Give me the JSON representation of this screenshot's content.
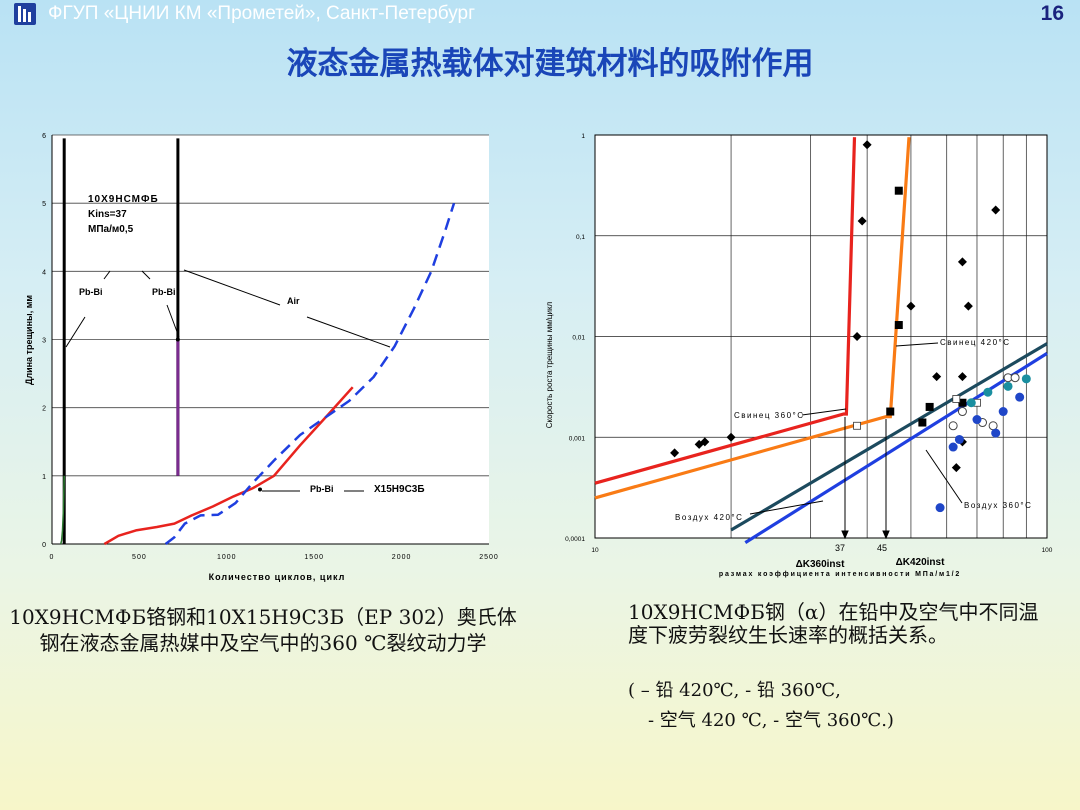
{
  "header": {
    "org": "ФГУП «ЦНИИ КМ «Прометей», Санкт-Петербург",
    "page": "16"
  },
  "title": "液态金属热载体对建筑材料的吸附作用",
  "captions": {
    "left": "10Х9НСМФБ铬钢和10Х15Н9С3Б（ЕР 302）奥氏体钢在液态金属热媒中及空气中的360 ℃裂纹动力学",
    "right": "10Х9НСМФБ钢（α）在铅中及空气中不同温度下疲劳裂纹生长速率的概括关系。",
    "legend_line1": "(    – 铅 420℃,   - 铅 360℃,",
    "legend_line2": "- 空气 420 ℃,    - 空气 360℃.)"
  },
  "colors": {
    "red": "#e8231e",
    "blue": "#1f3fe0",
    "orange": "#f97b15",
    "darkteal": "#1c4a5e",
    "purple": "#7a2b8f",
    "title_blue": "#1a46b8"
  },
  "chart_data": [
    {
      "type": "line",
      "xlabel": "Количество циклов, цикл",
      "ylabel": "Длина трещины, мм",
      "xlim": [
        0,
        2500
      ],
      "ylim": [
        0,
        6
      ],
      "xticks": [
        "0",
        "500",
        "1000",
        "1500",
        "2000",
        "2500"
      ],
      "yticks": [
        "0",
        "1",
        "2",
        "3",
        "4",
        "5",
        "6"
      ],
      "grid": "horizontal",
      "annotations": {
        "material_line1": "10Х9НСМФБ",
        "material_line2": "Kins=37",
        "material_line3": "МПа/м0,5",
        "pb1": "Pb-Bi",
        "pb2": "Pb-Bi",
        "air": "Air",
        "legend_pb": "Pb-Bi",
        "legend_steel": "Х15Н9С3Б"
      },
      "series": [
        {
          "role": "vertical-black-1",
          "x": [
            70,
            70
          ],
          "y": [
            0,
            5.95
          ]
        },
        {
          "role": "vertical-black-2",
          "x": [
            720,
            720
          ],
          "y": [
            1.0,
            5.95
          ]
        },
        {
          "role": "purple-segment",
          "x": [
            720,
            720
          ],
          "y": [
            1.0,
            3.0
          ]
        },
        {
          "role": "green-tail",
          "x": [
            50,
            55,
            60,
            65,
            70
          ],
          "y": [
            0,
            0.05,
            0.2,
            0.5,
            1.0
          ]
        },
        {
          "role": "red-X15N9S3B-PbBi",
          "x": [
            300,
            380,
            480,
            600,
            700,
            800,
            920,
            1040,
            1150,
            1270,
            1420,
            1580,
            1720
          ],
          "y": [
            0,
            0.12,
            0.2,
            0.25,
            0.3,
            0.42,
            0.55,
            0.7,
            0.82,
            1.0,
            1.45,
            1.9,
            2.3
          ]
        },
        {
          "role": "blue-dashed-air",
          "x": [
            650,
            700,
            760,
            850,
            950,
            1050,
            1150,
            1280,
            1420,
            1560,
            1700,
            1840,
            1960,
            2070,
            2170,
            2250,
            2300
          ],
          "y": [
            0,
            0.1,
            0.3,
            0.42,
            0.43,
            0.6,
            0.9,
            1.25,
            1.6,
            1.85,
            2.1,
            2.45,
            2.9,
            3.45,
            4.0,
            4.6,
            5.0
          ]
        }
      ]
    },
    {
      "type": "scatter",
      "xlabel": "размах коэффициента интенсивности МПа/м1/2",
      "ylabel": "Скорость роста трещины мм/цикл",
      "xscale": "log",
      "yscale": "log",
      "xlim": [
        10,
        100
      ],
      "ylim": [
        0.0001,
        1
      ],
      "xticks": [
        "10",
        "100"
      ],
      "yticks": [
        "0,0001",
        "0,001",
        "0,01",
        "0,1",
        "1"
      ],
      "grid": "both",
      "markers_x": [
        "37",
        "45"
      ],
      "k360": "ΔK360inst",
      "k420": "ΔK420inst",
      "annotations": {
        "lead420": "Свинец 420°C",
        "lead360": "Свинец 360°C",
        "air420": "Воздух 420°C",
        "air360": "Воздух 360°C"
      },
      "lines": [
        {
          "role": "red-lead-360",
          "x": [
            10,
            35.5,
            36,
            37.5
          ],
          "y": [
            0.00035,
            0.0017,
            0.0017,
            0.95
          ]
        },
        {
          "role": "orange-lead-420",
          "x": [
            10,
            44,
            45,
            49.5
          ],
          "y": [
            0.00025,
            0.0016,
            0.0016,
            0.95
          ]
        },
        {
          "role": "darkteal-air-420",
          "x": [
            20,
            100
          ],
          "y": [
            0.00012,
            0.0085
          ]
        },
        {
          "role": "blue-air-360",
          "x": [
            21.5,
            100
          ],
          "y": [
            9e-05,
            0.0068
          ]
        }
      ],
      "points": {
        "diamonds": [
          [
            15,
            0.0007
          ],
          [
            17,
            0.00085
          ],
          [
            17.5,
            0.0009
          ],
          [
            20,
            0.001
          ],
          [
            38,
            0.01
          ],
          [
            40,
            0.8
          ],
          [
            39,
            0.14
          ],
          [
            50,
            0.02
          ],
          [
            57,
            0.004
          ],
          [
            65,
            0.004
          ],
          [
            65,
            0.055
          ],
          [
            67,
            0.02
          ],
          [
            77,
            0.18
          ],
          [
            63,
            0.0005
          ],
          [
            65,
            0.0009
          ]
        ],
        "squares": [
          [
            47,
            0.28
          ],
          [
            47,
            0.013
          ],
          [
            45,
            0.0018
          ],
          [
            53,
            0.0014
          ],
          [
            55,
            0.002
          ],
          [
            65,
            0.0022
          ]
        ],
        "open_squares": [
          [
            38,
            0.0013
          ],
          [
            63,
            0.0024
          ],
          [
            70,
            0.0022
          ]
        ],
        "open_circles": [
          [
            62,
            0.0013
          ],
          [
            65,
            0.0018
          ],
          [
            72,
            0.0014
          ],
          [
            76,
            0.0013
          ],
          [
            82,
            0.0039
          ],
          [
            85,
            0.0039
          ]
        ],
        "blue_circles": [
          [
            58,
            0.0002
          ],
          [
            62,
            0.0008
          ],
          [
            64,
            0.00095
          ],
          [
            70,
            0.0015
          ],
          [
            77,
            0.0011
          ],
          [
            80,
            0.0018
          ],
          [
            87,
            0.0025
          ]
        ],
        "teal_circles": [
          [
            68,
            0.0022
          ],
          [
            74,
            0.0028
          ],
          [
            82,
            0.0032
          ],
          [
            90,
            0.0038
          ]
        ]
      }
    }
  ]
}
